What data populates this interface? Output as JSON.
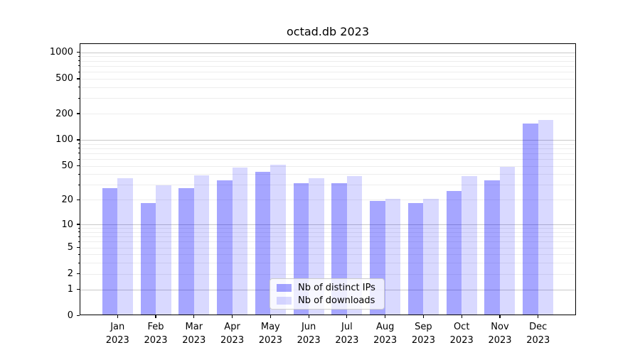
{
  "chart_data": {
    "type": "bar",
    "title": "octad.db 2023",
    "categories": [
      "Jan 2023",
      "Feb 2023",
      "Mar 2023",
      "Apr 2023",
      "May 2023",
      "Jun 2023",
      "Jul 2023",
      "Aug 2023",
      "Sep 2023",
      "Oct 2023",
      "Nov 2023",
      "Dec 2023"
    ],
    "series": [
      {
        "name": "Nb of distinct IPs",
        "color": "rgba(0,0,255,0.35)",
        "values": [
          27,
          18,
          27,
          33,
          42,
          31,
          31,
          19,
          18,
          25,
          33,
          150
        ]
      },
      {
        "name": "Nb of downloads",
        "color": "rgba(0,0,255,0.15)",
        "values": [
          35,
          29,
          38,
          47,
          51,
          35,
          37,
          20,
          20,
          37,
          48,
          165
        ]
      }
    ],
    "yscale": "log1p",
    "ylim": [
      0,
      1270
    ],
    "ytick_labels": [
      "0",
      "1",
      "2",
      "5",
      "10",
      "20",
      "50",
      "100",
      "200",
      "500",
      "1000"
    ],
    "ytick_values": [
      0,
      1,
      2,
      5,
      10,
      20,
      50,
      100,
      200,
      500,
      1000
    ],
    "ygrid_major": [
      1,
      10,
      100,
      1000
    ],
    "ygrid_minor": [
      2,
      3,
      4,
      5,
      6,
      7,
      8,
      9,
      20,
      30,
      40,
      50,
      60,
      70,
      80,
      90,
      200,
      300,
      400,
      500,
      600,
      700,
      800,
      900
    ],
    "grid": true,
    "legend_position": "lower center",
    "colors": {
      "grid_major": "#c8c8c8",
      "grid_minor": "#ededed",
      "axis": "#000000",
      "text": "#000000",
      "legend_border": "#cccccc",
      "legend_bg": "rgba(255,255,255,0.8)"
    }
  }
}
